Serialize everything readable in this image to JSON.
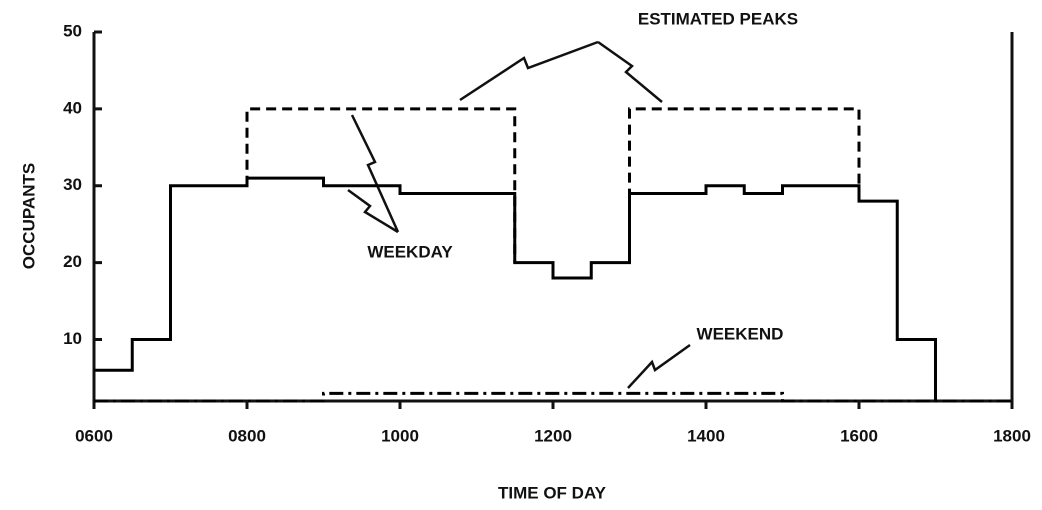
{
  "chart_data": {
    "type": "line",
    "y_label": "OCCUPANTS",
    "x_label": "TIME OF DAY",
    "annotations": [
      "ESTIMATED PEAKS",
      "WEEKDAY",
      "WEEKEND"
    ],
    "series": [
      {
        "name": "WEEKDAY",
        "step": true,
        "dash": "none",
        "color": "#000000",
        "x": [
          6,
          6.5,
          7,
          8,
          9,
          10,
          11.5,
          12,
          12.5,
          13,
          14,
          14.5,
          15,
          16,
          16.5,
          17
        ],
        "values": [
          6,
          10,
          30,
          31,
          30,
          29,
          20,
          18,
          20,
          29,
          30,
          29,
          30,
          28,
          10,
          2
        ]
      },
      {
        "name": "ESTIMATED PEAKS",
        "step": false,
        "dash": "10,6",
        "color": "#000000",
        "x": [
          8,
          8,
          11.5,
          11.5,
          12.25,
          13,
          13,
          16,
          16
        ],
        "values": [
          30,
          40,
          40,
          20,
          null,
          20,
          40,
          40,
          28
        ]
      },
      {
        "name": "WEEKEND",
        "step": true,
        "dash": "14,5,3,5",
        "color": "#000000",
        "x": [
          6,
          9,
          15,
          18
        ],
        "values": [
          2,
          3,
          2,
          2
        ]
      }
    ],
    "xlim": [
      6,
      18
    ],
    "xticks": [
      {
        "value": 6,
        "label": "0600"
      },
      {
        "value": 8,
        "label": "0800"
      },
      {
        "value": 10,
        "label": "1000"
      },
      {
        "value": 12,
        "label": "1200"
      },
      {
        "value": 14,
        "label": "1400"
      },
      {
        "value": 16,
        "label": "1600"
      },
      {
        "value": 18,
        "label": "1800"
      }
    ],
    "ylim": [
      2,
      50
    ],
    "yticks": [
      10,
      20,
      30,
      40,
      50
    ],
    "grid": false
  }
}
